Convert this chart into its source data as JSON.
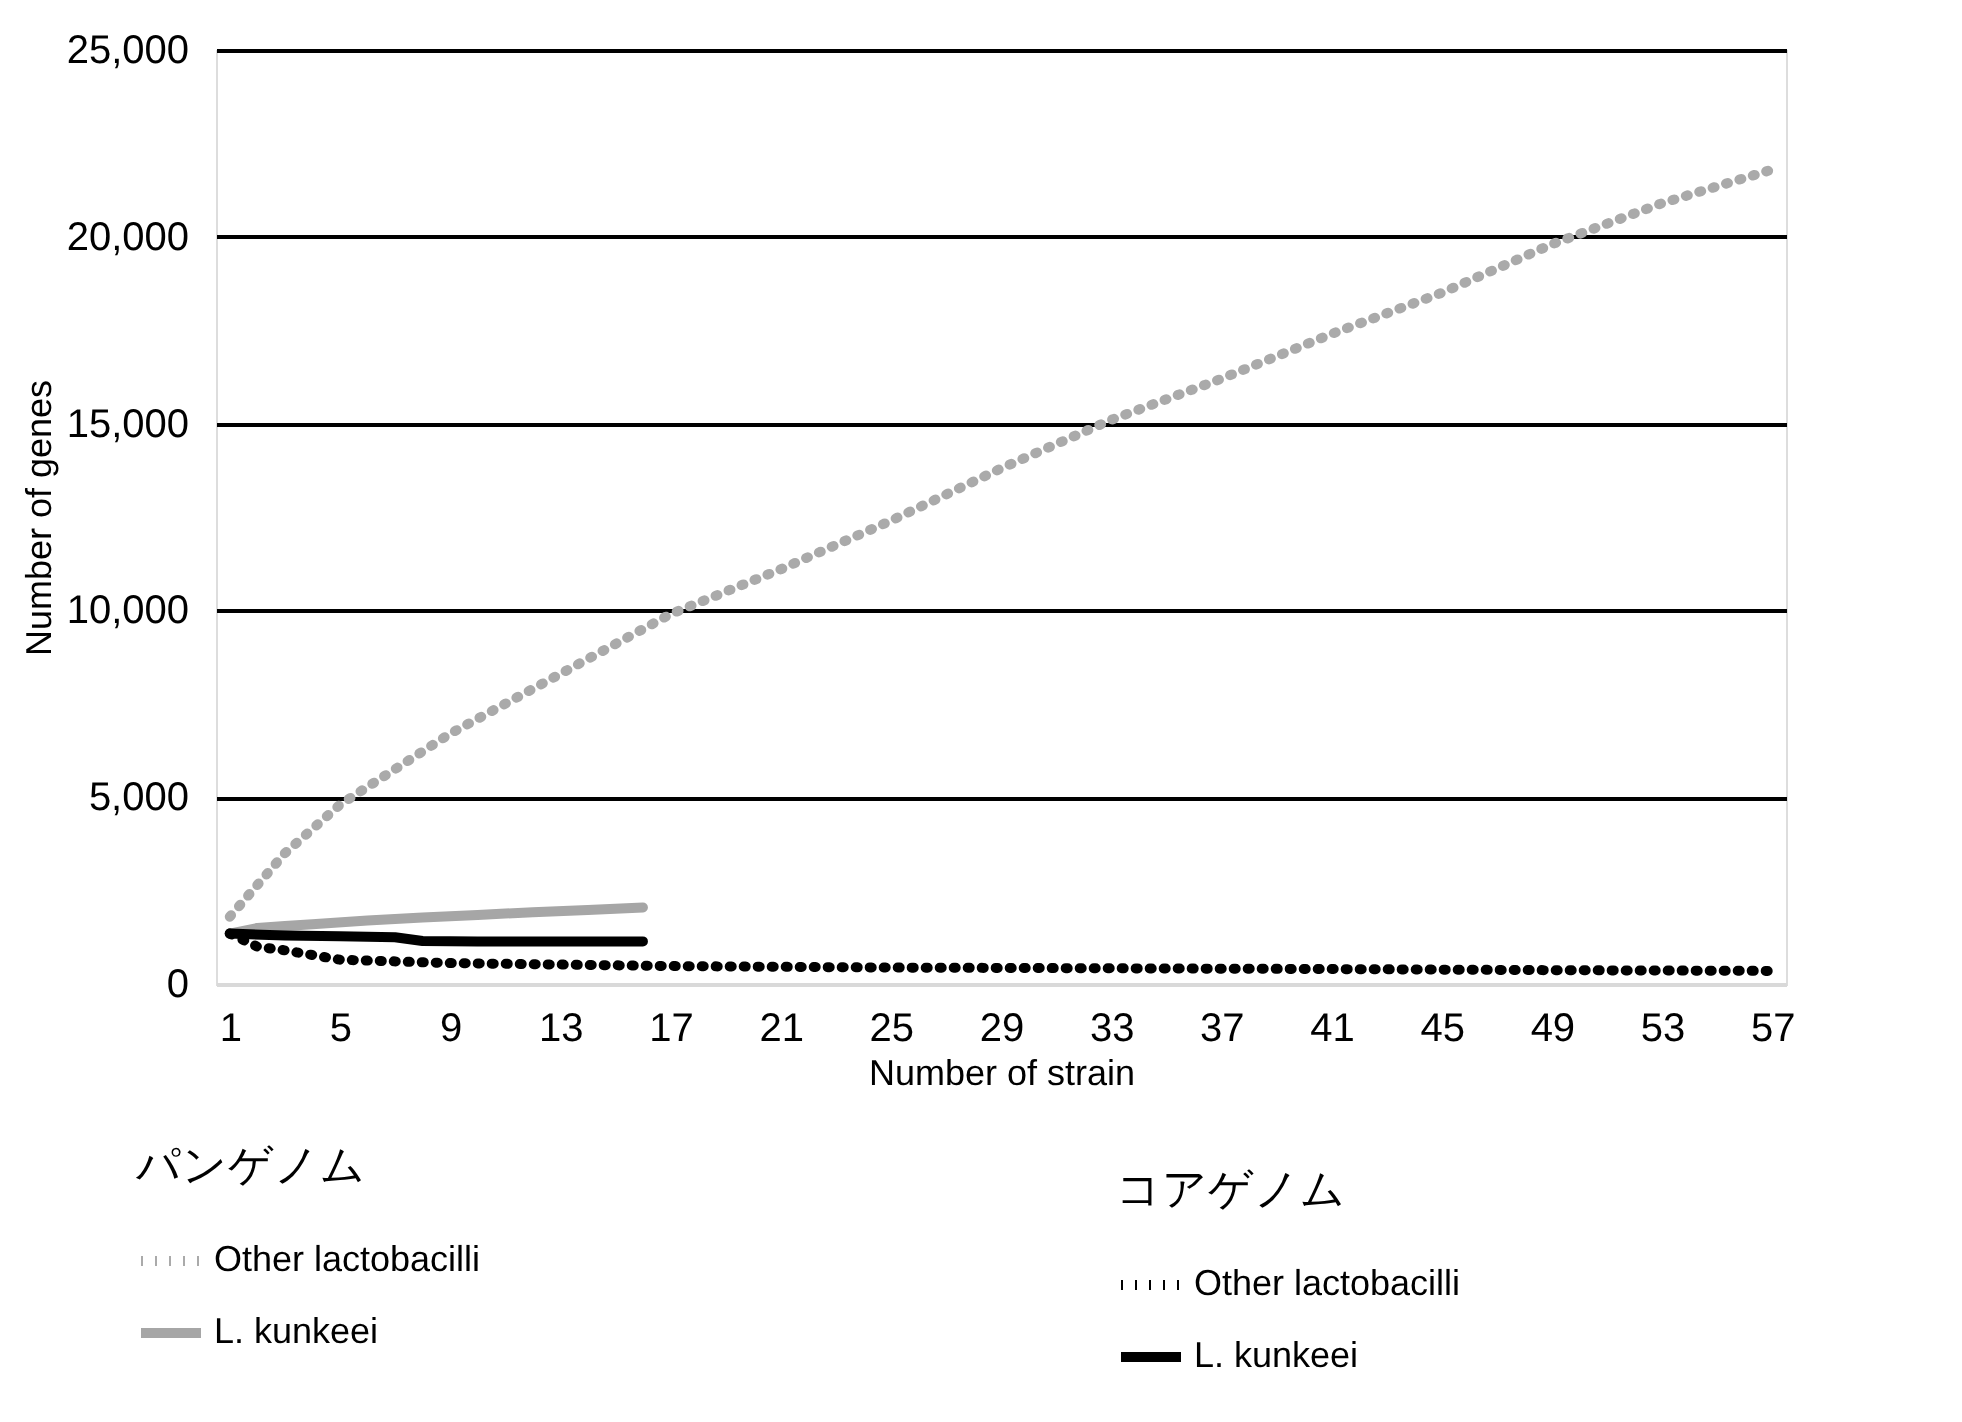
{
  "chart_data": {
    "type": "line",
    "xlabel": "Number of strain",
    "ylabel": "Number of genes",
    "xlim": [
      0.5,
      57.5
    ],
    "xticks": [
      1,
      5,
      9,
      13,
      17,
      21,
      25,
      29,
      33,
      37,
      41,
      45,
      49,
      53,
      57
    ],
    "ylim": [
      0,
      25000
    ],
    "yticks": [
      0,
      {
        "value": 5000,
        "label": "5,000"
      },
      {
        "value": 10000,
        "label": "10,000"
      },
      {
        "value": 15000,
        "label": "15,000"
      },
      {
        "value": 20000,
        "label": "20,000"
      },
      {
        "value": 25000,
        "label": "25,000"
      }
    ],
    "grid": "y",
    "legend": "bottom",
    "marker": "none",
    "legend_title": [
      "パンゲノム",
      "コアゲノム"
    ],
    "series": [
      {
        "name": "Other lactobacilli",
        "color": "#aaaaaa",
        "line_style": "dotted",
        "x": [
          1,
          3,
          5,
          9,
          13,
          17,
          21,
          25,
          29,
          33,
          37,
          41,
          45,
          49,
          53,
          57
        ],
        "values": [
          1800,
          3500,
          4800,
          6700,
          8300,
          9900,
          11100,
          12400,
          13800,
          15100,
          16200,
          17400,
          18500,
          19800,
          20900,
          21800
        ]
      },
      {
        "name": "L. kunkeei",
        "color": "#a6a6a6",
        "line_style": "solid",
        "x": [
          1,
          2,
          3,
          4,
          6,
          8,
          10,
          12,
          14,
          16
        ],
        "values": [
          1350,
          1500,
          1550,
          1600,
          1700,
          1780,
          1850,
          1920,
          1980,
          2050
        ]
      },
      {
        "name": "Other lactobacilli",
        "color": "#000000",
        "line_style": "dotted",
        "x": [
          1,
          2,
          3,
          5,
          9,
          17,
          25,
          33,
          41,
          49,
          57
        ],
        "values": [
          1350,
          1000,
          900,
          650,
          560,
          480,
          440,
          420,
          400,
          370,
          350
        ]
      },
      {
        "name": "L. kunkeei",
        "color": "#000000",
        "line_style": "solid",
        "x": [
          1,
          3,
          5,
          7,
          8,
          10,
          12,
          14,
          16
        ],
        "values": [
          1350,
          1300,
          1280,
          1250,
          1150,
          1140,
          1140,
          1140,
          1140
        ]
      }
    ]
  }
}
